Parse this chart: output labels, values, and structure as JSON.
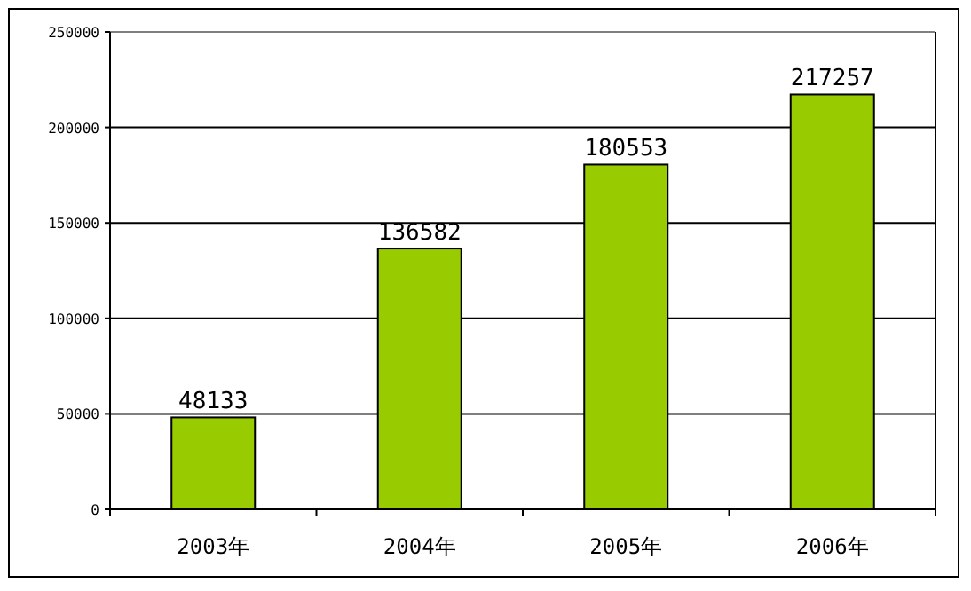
{
  "chart_data": {
    "type": "bar",
    "categories": [
      "2003年",
      "2004年",
      "2005年",
      "2006年"
    ],
    "values": [
      48133,
      136582,
      180553,
      217257
    ],
    "color": "#99cc00",
    "ylim": [
      0,
      250000
    ],
    "yticks": [
      0,
      50000,
      100000,
      150000,
      200000,
      250000
    ],
    "grid": "y",
    "data_labels": true
  }
}
